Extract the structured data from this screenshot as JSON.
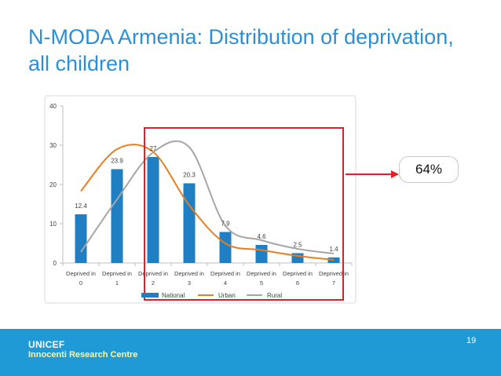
{
  "slide": {
    "title": "N-MODA Armenia: Distribution of deprivation, all children",
    "callout_text": "64%",
    "page_number": "19"
  },
  "footer": {
    "brand_line1": "UNICEF",
    "brand_line2": "Innocenti Research Centre"
  },
  "colors": {
    "title": "#2b8fd6",
    "national": "#1f7fc2",
    "urban": "#e57f22",
    "rural": "#a6a6a6",
    "highlight": "#e31e24",
    "footer_bg": "#1f9ad6"
  },
  "chart_data": {
    "type": "bar",
    "categories": [
      [
        "Deprived in",
        "0"
      ],
      [
        "Deprived in",
        "1"
      ],
      [
        "Deprived in",
        "2"
      ],
      [
        "Deprived in",
        "3"
      ],
      [
        "Deprived in",
        "4"
      ],
      [
        "Deprived in",
        "5"
      ],
      [
        "Deprived in",
        "6"
      ],
      [
        "Deprived in",
        "7"
      ]
    ],
    "series": [
      {
        "name": "National",
        "kind": "bar",
        "values": [
          12.4,
          23.9,
          27,
          20.3,
          7.9,
          4.6,
          2.5,
          1.4
        ],
        "labels": [
          "12.4",
          "23.9",
          "27",
          "20.3",
          "7.9",
          "4.6",
          "2.5",
          "1.4"
        ]
      },
      {
        "name": "Urban",
        "kind": "line",
        "values": [
          18.3,
          29.0,
          28.3,
          14.7,
          5.0,
          3.3,
          1.8,
          0.8
        ]
      },
      {
        "name": "Rural",
        "kind": "line",
        "values": [
          2.8,
          16.2,
          28.2,
          29.5,
          9.5,
          5.8,
          3.6,
          2.4
        ]
      }
    ],
    "yticks": [
      0,
      10,
      20,
      30,
      40
    ],
    "ylim": [
      0,
      40
    ],
    "legend": [
      "National",
      "Urban",
      "Rural"
    ],
    "highlight_range": "Deprived in 2 to Deprived in 7"
  }
}
